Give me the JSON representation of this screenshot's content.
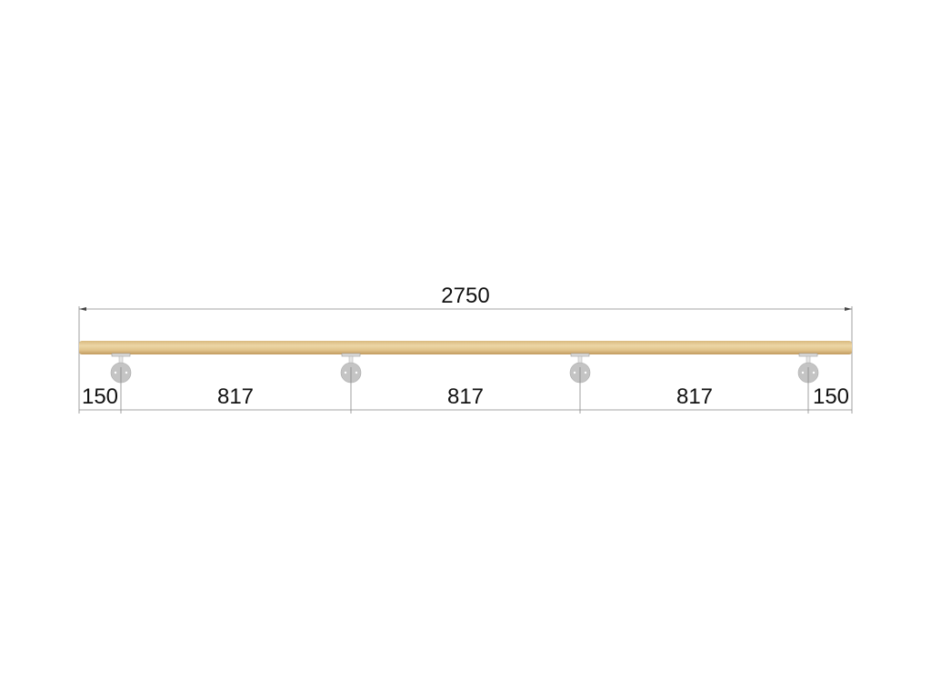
{
  "drawing": {
    "overall_length": "2750",
    "segments": [
      "150",
      "817",
      "817",
      "817",
      "150"
    ],
    "bracket_count": 4,
    "colors": {
      "rail": "#e3c892",
      "rail_shade": "#c9a66b",
      "bracket": "#c4c4c4",
      "dimension_line": "#888888",
      "text": "#111111"
    }
  }
}
